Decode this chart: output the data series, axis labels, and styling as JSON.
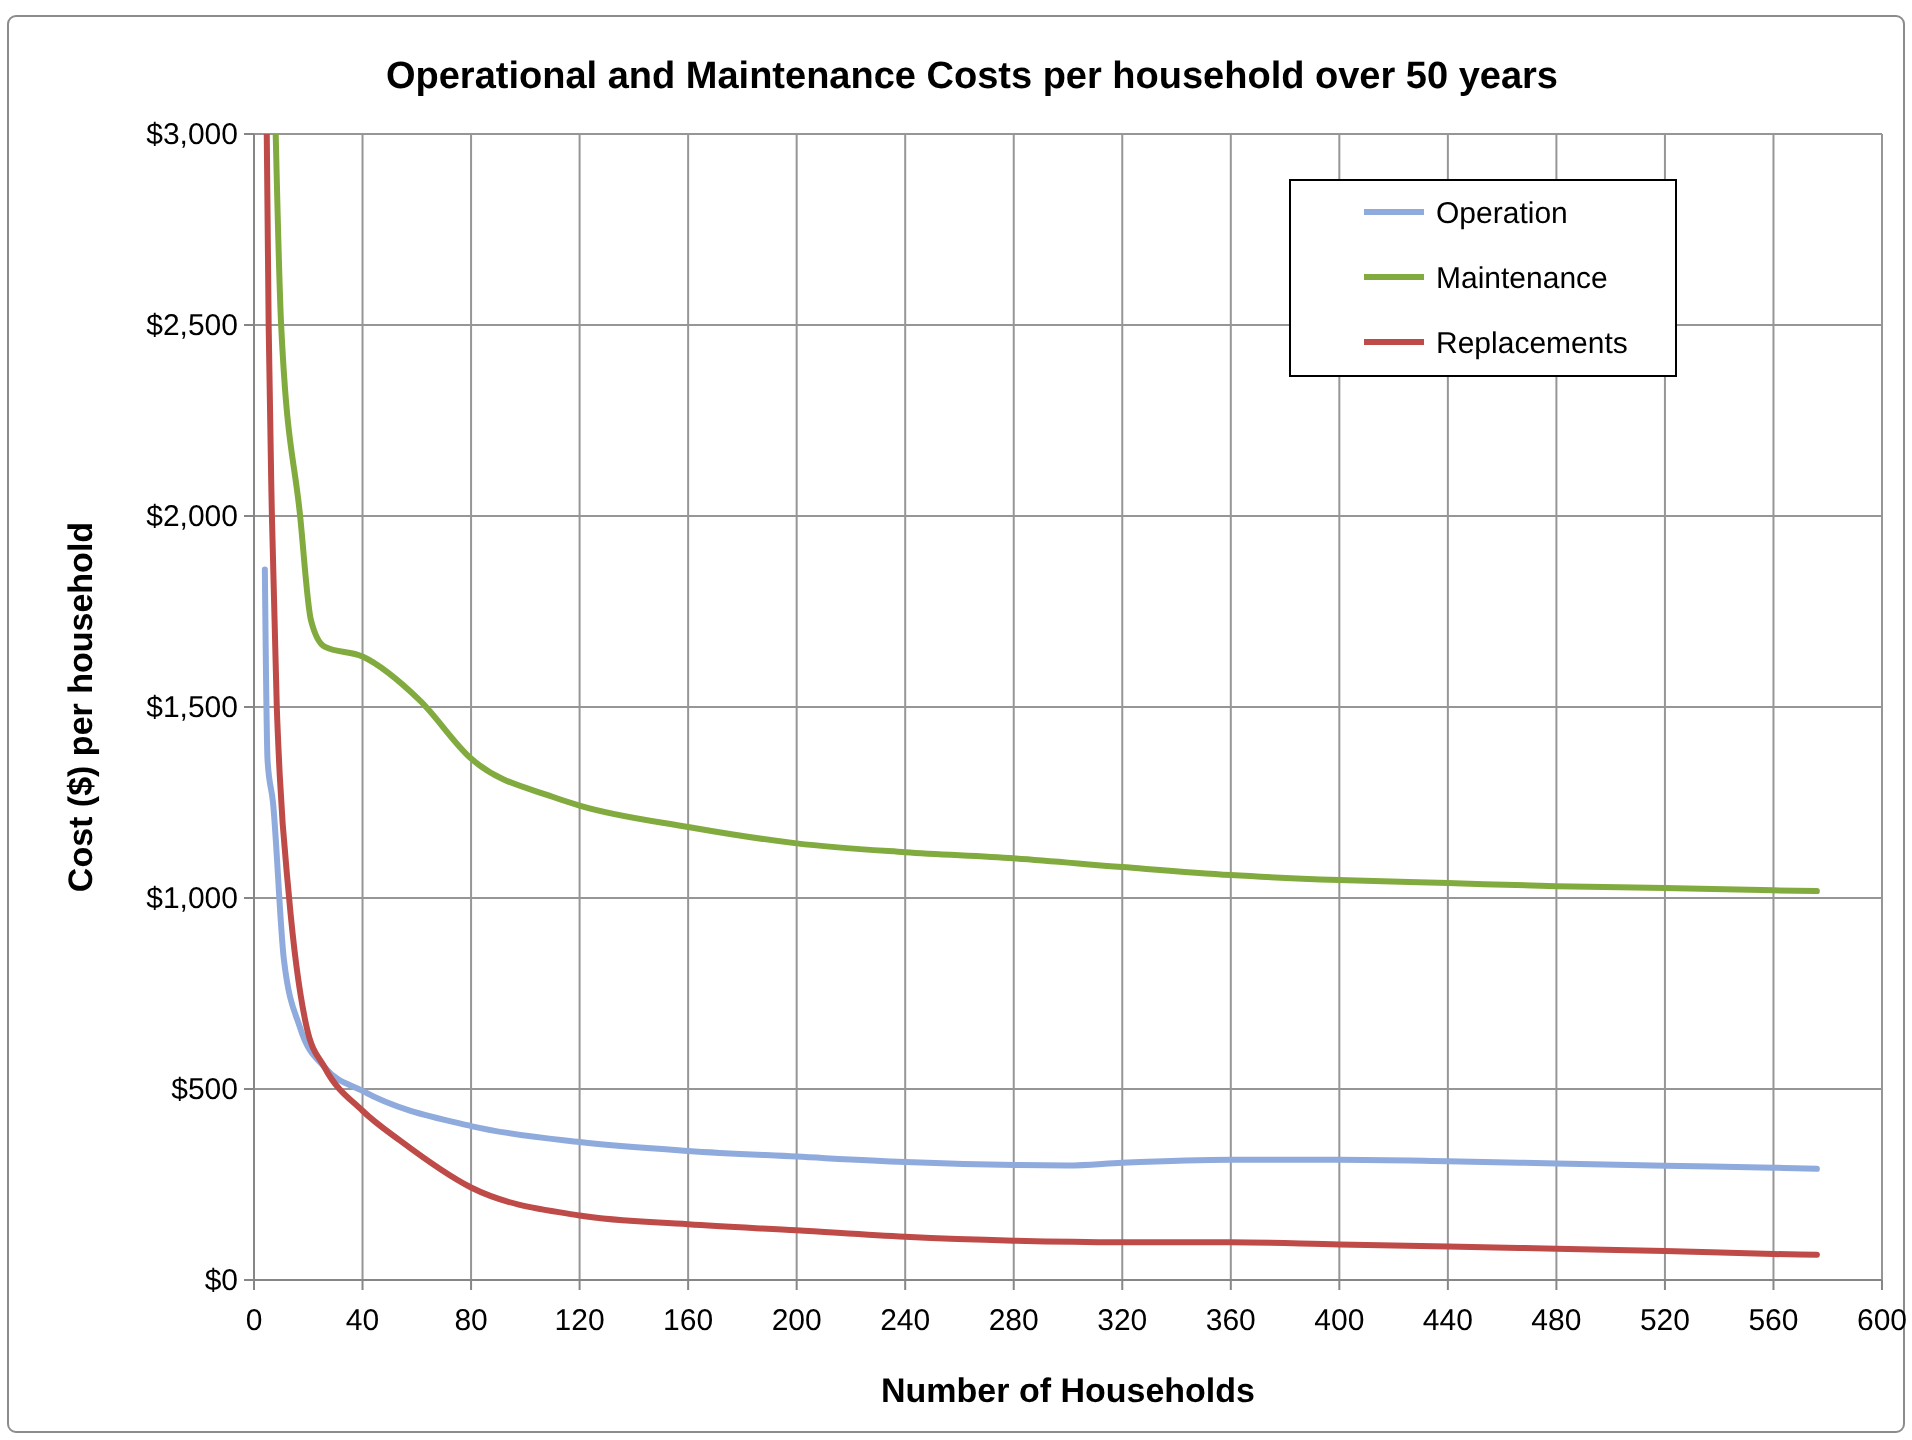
{
  "chart_data": {
    "type": "line",
    "title": "Operational and Maintenance Costs per household over 50 years",
    "xlabel": "Number of Households",
    "ylabel": "Cost ($) per household",
    "xlim": [
      0,
      600
    ],
    "xticks": [
      0,
      40,
      80,
      120,
      160,
      200,
      240,
      280,
      320,
      360,
      400,
      440,
      480,
      520,
      560,
      600
    ],
    "ylim": [
      0,
      3000
    ],
    "yticks": [
      {
        "value": 0,
        "label": "$0"
      },
      {
        "value": 500,
        "label": "$500"
      },
      {
        "value": 1000,
        "label": "$1,000"
      },
      {
        "value": 1500,
        "label": "$1,500"
      },
      {
        "value": 2000,
        "label": "$2,000"
      },
      {
        "value": 2500,
        "label": "$2,500"
      },
      {
        "value": 3000,
        "label": "$3,000"
      }
    ],
    "grid": true,
    "legend": "top right",
    "marker": "none",
    "line_style": "solid",
    "series": [
      {
        "name": "Operation",
        "color": "#8faadc",
        "x": [
          4,
          5,
          7,
          11,
          17,
          26,
          40,
          80,
          120,
          160,
          200,
          240,
          280,
          300,
          320,
          360,
          400,
          440,
          480,
          520,
          560,
          576
        ],
        "values": [
          1860,
          1360,
          1250,
          840,
          660,
          557,
          495,
          403,
          361,
          338,
          323,
          309,
          301,
          300,
          307,
          315,
          315,
          311,
          305,
          299,
          294,
          291
        ]
      },
      {
        "name": "Maintenance",
        "color": "#82ab3f",
        "x": [
          8,
          10,
          17,
          21,
          26,
          40,
          61,
          80,
          110,
          120,
          160,
          200,
          240,
          280,
          320,
          360,
          400,
          440,
          480,
          520,
          560,
          576
        ],
        "values": [
          3000,
          2500,
          2000,
          1727,
          1658,
          1632,
          1518,
          1365,
          1265,
          1242,
          1186,
          1143,
          1120,
          1104,
          1081,
          1060,
          1047,
          1039,
          1031,
          1026,
          1020,
          1018
        ]
      },
      {
        "name": "Replacements",
        "color": "#be4b48",
        "x": [
          4.7,
          5.4,
          6.6,
          8.4,
          9.5,
          12.8,
          19.4,
          26,
          40,
          54,
          80,
          120,
          160,
          200,
          240,
          280,
          320,
          360,
          400,
          440,
          480,
          520,
          560,
          576
        ],
        "values": [
          3000,
          2500,
          2000,
          1500,
          1320,
          1011,
          662,
          557,
          443,
          364,
          242,
          169,
          146,
          130,
          113,
          103,
          99,
          99,
          93,
          88,
          82,
          76,
          68,
          66
        ]
      }
    ]
  }
}
